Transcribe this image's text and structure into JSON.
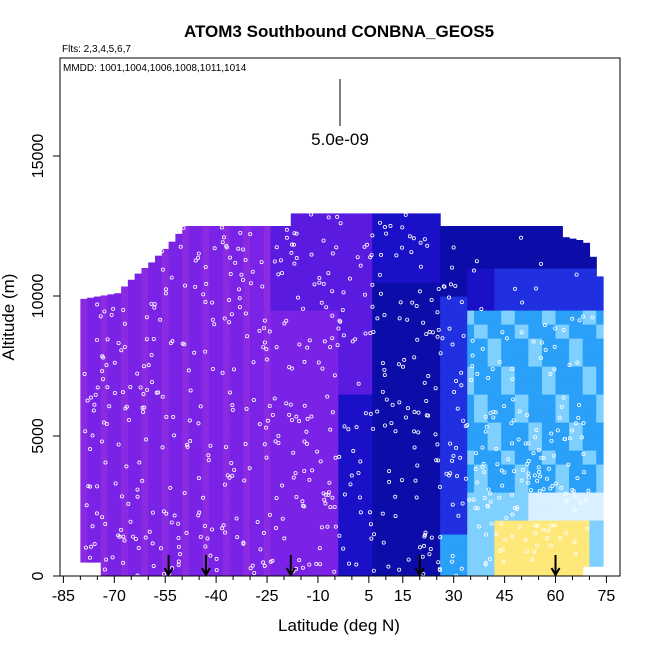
{
  "chart_data": {
    "type": "heatmap",
    "title": "ATOM3 Southbound CONBNA_GEOS5",
    "subtitle_flights": "Flts: 2,3,4,5,6,7",
    "dates_label": "MMDD: 1001,1004,1006,1008,1011,1014",
    "xlabel": "Latitude (deg N)",
    "ylabel": "Altitude (m)",
    "xlim": [
      -86,
      79
    ],
    "ylim": [
      0,
      18500
    ],
    "x_ticks": [
      -85,
      -70,
      -55,
      -40,
      -25,
      -10,
      5,
      15,
      30,
      45,
      60,
      75
    ],
    "x_minor_ticks": [
      -80,
      -75,
      -65,
      -60,
      -50,
      -45,
      -35,
      -30,
      -20,
      -15,
      -5,
      0,
      10,
      20,
      25,
      35,
      40,
      50,
      55,
      65,
      70
    ],
    "y_ticks": [
      0,
      5000,
      10000,
      15000
    ],
    "scale_bar_label": "5.0e-09",
    "scale_bar_value": 5e-09,
    "arrow_latitudes": [
      -54,
      -43,
      -18,
      20,
      60
    ],
    "colors": {
      "purple": "#8a2be2",
      "violet": "#7a22e6",
      "blue_violet": "#5a1ae0",
      "deep_blue": "#1a10c8",
      "navy": "#0c0ca8",
      "blue": "#2030e0",
      "sky": "#2aa0f8",
      "light_sky": "#7fd0ff",
      "pale": "#d8f0ff",
      "yellow": "#ffe87a",
      "marker": "#ffffff"
    }
  }
}
